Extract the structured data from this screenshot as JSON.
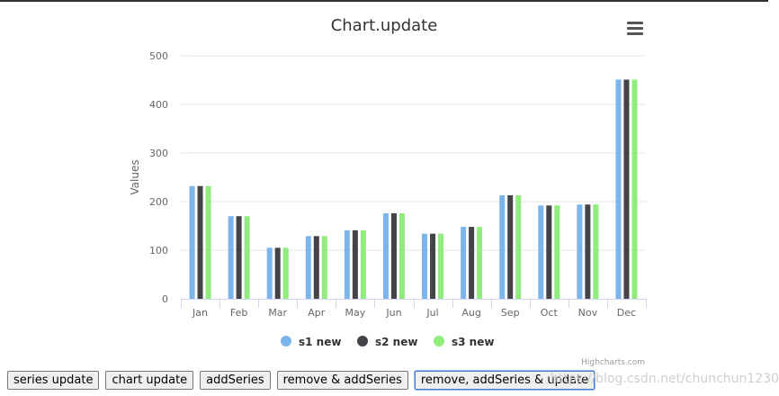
{
  "chart_data": {
    "type": "bar",
    "title": "Chart.update",
    "xlabel": "",
    "ylabel": "Values",
    "ylim": [
      0,
      500
    ],
    "yticks": [
      0,
      100,
      200,
      300,
      400,
      500
    ],
    "categories": [
      "Jan",
      "Feb",
      "Mar",
      "Apr",
      "May",
      "Jun",
      "Jul",
      "Aug",
      "Sep",
      "Oct",
      "Nov",
      "Dec"
    ],
    "series": [
      {
        "name": "s1 new",
        "color": "#7cb5ec",
        "values": [
          232,
          170,
          105,
          129,
          141,
          176,
          134,
          148,
          213,
          192,
          194,
          451
        ]
      },
      {
        "name": "s2 new",
        "color": "#434348",
        "values": [
          232,
          170,
          105,
          129,
          141,
          176,
          134,
          148,
          213,
          192,
          194,
          451
        ]
      },
      {
        "name": "s3 new",
        "color": "#90ed7d",
        "values": [
          232,
          170,
          105,
          129,
          141,
          176,
          134,
          148,
          213,
          192,
          194,
          451
        ]
      }
    ],
    "grid": true,
    "legend_position": "bottom-center",
    "credits": "Highcharts.com"
  },
  "menu_icon": "hamburger-menu-icon",
  "buttons": {
    "series_update": "series update",
    "chart_update": "chart update",
    "add_series": "addSeries",
    "remove_add_series": "remove & addSeries",
    "remove_add_series_update": "remove, addSeries & update"
  },
  "watermark": "https://blog.csdn.net/chunchun1230"
}
